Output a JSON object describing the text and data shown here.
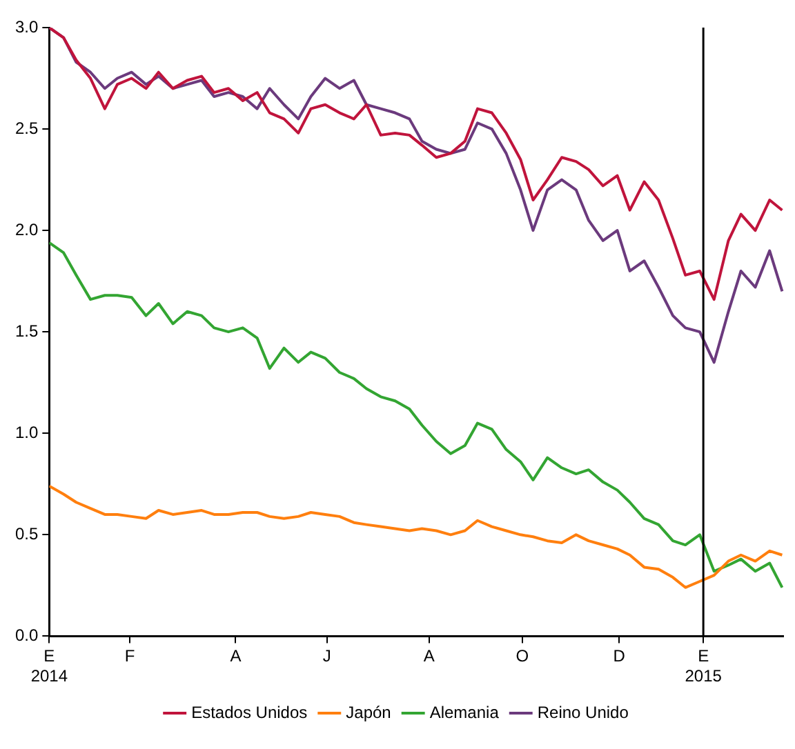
{
  "chart_data": {
    "type": "line",
    "x": [
      "2014-01-01",
      "2014-01-09",
      "2014-01-16",
      "2014-01-24",
      "2014-02-01",
      "2014-02-08",
      "2014-02-16",
      "2014-02-24",
      "2014-03-03",
      "2014-03-11",
      "2014-03-19",
      "2014-03-27",
      "2014-04-03",
      "2014-04-11",
      "2014-04-19",
      "2014-04-27",
      "2014-05-04",
      "2014-05-12",
      "2014-05-20",
      "2014-05-27",
      "2014-06-04",
      "2014-06-12",
      "2014-06-20",
      "2014-06-27",
      "2014-07-05",
      "2014-07-13",
      "2014-07-21",
      "2014-07-28",
      "2014-08-05",
      "2014-08-13",
      "2014-08-21",
      "2014-08-28",
      "2014-09-05",
      "2014-09-13",
      "2014-09-21",
      "2014-09-28",
      "2014-10-06",
      "2014-10-14",
      "2014-10-22",
      "2014-10-29",
      "2014-11-06",
      "2014-11-14",
      "2014-11-21",
      "2014-11-29",
      "2014-12-07",
      "2014-12-15",
      "2014-12-22",
      "2014-12-30",
      "2015-01-07",
      "2015-01-15",
      "2015-01-22",
      "2015-01-30",
      "2015-02-07",
      "2015-02-14"
    ],
    "series": [
      {
        "name": "Estados Unidos",
        "color": "#c0143c",
        "values": [
          3.0,
          2.95,
          2.84,
          2.75,
          2.6,
          2.72,
          2.75,
          2.7,
          2.78,
          2.7,
          2.74,
          2.76,
          2.68,
          2.7,
          2.64,
          2.68,
          2.58,
          2.55,
          2.48,
          2.6,
          2.62,
          2.58,
          2.55,
          2.62,
          2.47,
          2.48,
          2.47,
          2.42,
          2.36,
          2.38,
          2.44,
          2.6,
          2.58,
          2.48,
          2.35,
          2.15,
          2.25,
          2.36,
          2.34,
          2.3,
          2.22,
          2.27,
          2.1,
          2.24,
          2.15,
          1.96,
          1.78,
          1.8,
          1.66,
          1.95,
          2.08,
          2.0,
          2.15,
          2.1
        ]
      },
      {
        "name": "Japón",
        "color": "#ff7f0e",
        "values": [
          0.74,
          0.7,
          0.66,
          0.63,
          0.6,
          0.6,
          0.59,
          0.58,
          0.62,
          0.6,
          0.61,
          0.62,
          0.6,
          0.6,
          0.61,
          0.61,
          0.59,
          0.58,
          0.59,
          0.61,
          0.6,
          0.59,
          0.56,
          0.55,
          0.54,
          0.53,
          0.52,
          0.53,
          0.52,
          0.5,
          0.52,
          0.57,
          0.54,
          0.52,
          0.5,
          0.49,
          0.47,
          0.46,
          0.5,
          0.47,
          0.45,
          0.43,
          0.4,
          0.34,
          0.33,
          0.29,
          0.24,
          0.27,
          0.3,
          0.37,
          0.4,
          0.37,
          0.42,
          0.4
        ]
      },
      {
        "name": "Alemania",
        "color": "#33a532",
        "values": [
          1.94,
          1.89,
          1.78,
          1.66,
          1.68,
          1.68,
          1.67,
          1.58,
          1.64,
          1.54,
          1.6,
          1.58,
          1.52,
          1.5,
          1.52,
          1.47,
          1.32,
          1.42,
          1.35,
          1.4,
          1.37,
          1.3,
          1.27,
          1.22,
          1.18,
          1.16,
          1.12,
          1.04,
          0.96,
          0.9,
          0.94,
          1.05,
          1.02,
          0.92,
          0.86,
          0.77,
          0.88,
          0.83,
          0.8,
          0.82,
          0.76,
          0.72,
          0.66,
          0.58,
          0.55,
          0.47,
          0.45,
          0.5,
          0.32,
          0.35,
          0.38,
          0.32,
          0.36,
          0.24
        ]
      },
      {
        "name": "Reino Unido",
        "color": "#6b3a7d",
        "values": [
          3.0,
          2.95,
          2.83,
          2.78,
          2.7,
          2.75,
          2.78,
          2.72,
          2.76,
          2.7,
          2.72,
          2.74,
          2.66,
          2.68,
          2.66,
          2.6,
          2.7,
          2.62,
          2.55,
          2.66,
          2.75,
          2.7,
          2.74,
          2.62,
          2.6,
          2.58,
          2.55,
          2.44,
          2.4,
          2.38,
          2.4,
          2.53,
          2.5,
          2.38,
          2.2,
          2.0,
          2.2,
          2.25,
          2.2,
          2.05,
          1.95,
          2.0,
          1.8,
          1.85,
          1.72,
          1.58,
          1.52,
          1.5,
          1.35,
          1.6,
          1.8,
          1.72,
          1.9,
          1.7
        ]
      }
    ],
    "xlim": [
      "2014-01-01",
      "2015-02-15"
    ],
    "xticks": [
      {
        "value": "2014-01-01",
        "label": "E\n2014"
      },
      {
        "value": "2014-02-15",
        "label": "F"
      },
      {
        "value": "2014-04-15",
        "label": "A"
      },
      {
        "value": "2014-06-05",
        "label": "J"
      },
      {
        "value": "2014-08-01",
        "label": "A"
      },
      {
        "value": "2014-09-22",
        "label": "O"
      },
      {
        "value": "2014-11-15",
        "label": "D"
      },
      {
        "value": "2015-01-01",
        "label": "E\n2015"
      }
    ],
    "ylim": [
      0,
      3
    ],
    "yticks": [
      {
        "value": 0,
        "label": "0.0"
      },
      0.5,
      {
        "value": 1,
        "label": "1.0"
      },
      1.5,
      {
        "value": 2,
        "label": "2.0"
      },
      2.5,
      {
        "value": 3,
        "label": "3.0"
      }
    ],
    "ref_lines": [
      {
        "axis": "x",
        "value": "2015-01-01",
        "color": "#000000"
      }
    ],
    "grid": false,
    "legend": "bottom",
    "marker": "none",
    "line_style": "solid"
  }
}
